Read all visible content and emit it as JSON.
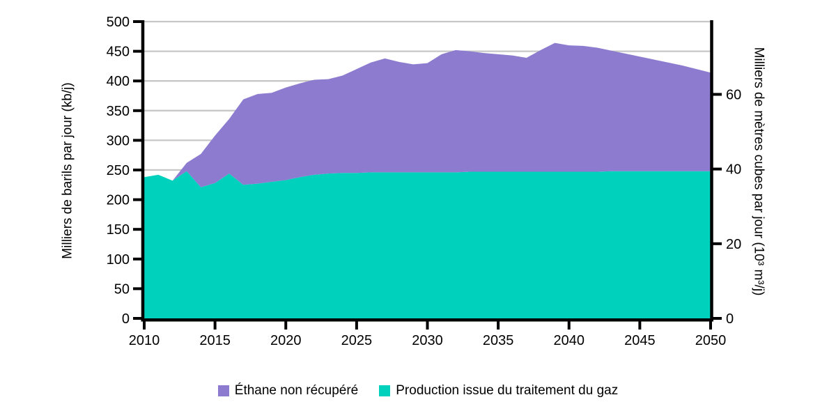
{
  "chart_data": {
    "type": "area",
    "stacked": true,
    "title": "",
    "x": [
      2010,
      2011,
      2012,
      2013,
      2014,
      2015,
      2016,
      2017,
      2018,
      2019,
      2020,
      2021,
      2022,
      2023,
      2024,
      2025,
      2026,
      2027,
      2028,
      2029,
      2030,
      2031,
      2032,
      2033,
      2034,
      2035,
      2036,
      2037,
      2038,
      2039,
      2040,
      2041,
      2042,
      2043,
      2044,
      2045,
      2046,
      2047,
      2048,
      2049,
      2050
    ],
    "series": [
      {
        "name": "Production issue du traitement du gaz",
        "color": "#00D1BC",
        "values": [
          238,
          242,
          232,
          248,
          221,
          228,
          244,
          225,
          227,
          230,
          233,
          238,
          242,
          244,
          245,
          245,
          246,
          246,
          246,
          246,
          246,
          246,
          246,
          247,
          247,
          247,
          247,
          247,
          247,
          247,
          247,
          247,
          247,
          248,
          248,
          248,
          248,
          248,
          248,
          248,
          248
        ]
      },
      {
        "name": "Éthane non récupéré",
        "color": "#8C7BCF",
        "values": [
          0,
          0,
          0,
          14,
          56,
          80,
          92,
          144,
          151,
          150,
          156,
          158,
          160,
          159,
          164,
          175,
          185,
          192,
          186,
          182,
          184,
          199,
          206,
          203,
          200,
          198,
          196,
          192,
          205,
          217,
          213,
          212,
          209,
          203,
          198,
          193,
          188,
          183,
          178,
          172,
          166
        ]
      }
    ],
    "y_left": {
      "label": "Milliers de barils par jour (kb/j)",
      "range": [
        0,
        500
      ],
      "ticks": [
        0,
        50,
        100,
        150,
        200,
        250,
        300,
        350,
        400,
        450,
        500
      ]
    },
    "y_right": {
      "label": "Milliers de mètres cubes par jour (10³ m³/j)",
      "ticks": [
        0,
        20,
        40,
        60
      ],
      "kb_per_unit": 6.29
    },
    "x_ticks": [
      2010,
      2015,
      2020,
      2025,
      2030,
      2035,
      2040,
      2045,
      2050
    ],
    "grid": {
      "show": true,
      "color": "#C7C7C7",
      "values": [
        50,
        100,
        150,
        200,
        250,
        300,
        350,
        400,
        450,
        500
      ]
    },
    "axis_color": "#000000",
    "text_color": "#000000",
    "legend": {
      "position": "bottom",
      "items": [
        {
          "label": "Éthane non récupéré",
          "color": "#8C7BCF"
        },
        {
          "label": "Production issue du traitement du gaz",
          "color": "#00D1BC"
        }
      ]
    }
  }
}
